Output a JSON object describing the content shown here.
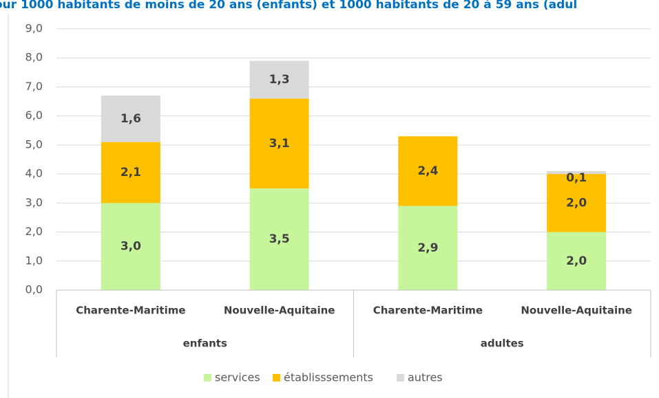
{
  "chart_data": {
    "type": "stacked_bar",
    "title": "our 1000 habitants de moins de 20 ans (enfants) et 1000 habitants de 20 à 59 ans (adul",
    "categories": [
      "Charente-Maritime",
      "Nouvelle-Aquitaine",
      "Charente-Maritime",
      "Nouvelle-Aquitaine"
    ],
    "groups": [
      "enfants",
      "adultes"
    ],
    "series": [
      {
        "name": "services",
        "color": "#c6f59c",
        "values": [
          3.0,
          3.5,
          2.9,
          2.0
        ],
        "value_labels": [
          "3,0",
          "3,5",
          "2,9",
          "2,0"
        ]
      },
      {
        "name": "établisssements",
        "color": "#ffc000",
        "values": [
          2.1,
          3.1,
          2.4,
          2.0
        ],
        "value_labels": [
          "2,1",
          "3,1",
          "2,4",
          "2,0"
        ]
      },
      {
        "name": "autres",
        "color": "#d9d9d9",
        "values": [
          1.6,
          1.3,
          null,
          0.1
        ],
        "value_labels": [
          "1,6",
          "1,3",
          null,
          "0,1"
        ]
      }
    ],
    "ylim": [
      0,
      9
    ],
    "yticks": [
      {
        "value": 0,
        "label": "0,0"
      },
      {
        "value": 1,
        "label": "1,0"
      },
      {
        "value": 2,
        "label": "2,0"
      },
      {
        "value": 3,
        "label": "3,0"
      },
      {
        "value": 4,
        "label": "4,0"
      },
      {
        "value": 5,
        "label": "5,0"
      },
      {
        "value": 6,
        "label": "6,0"
      },
      {
        "value": 7,
        "label": "7,0"
      },
      {
        "value": 8,
        "label": "8,0"
      },
      {
        "value": 9,
        "label": "9,0"
      }
    ],
    "grid": true,
    "legend": "bottom"
  }
}
